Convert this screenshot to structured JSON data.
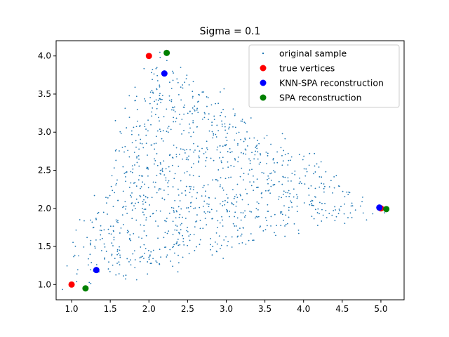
{
  "chart_data": {
    "type": "scatter",
    "title": "Sigma = 0.1",
    "xlabel": "",
    "ylabel": "",
    "xlim": [
      0.8,
      5.3
    ],
    "ylim": [
      0.8,
      4.2
    ],
    "xticks": [
      1.0,
      1.5,
      2.0,
      2.5,
      3.0,
      3.5,
      4.0,
      4.5,
      5.0
    ],
    "yticks": [
      1.0,
      1.5,
      2.0,
      2.5,
      3.0,
      3.5,
      4.0
    ],
    "xtick_labels": [
      "1.0",
      "1.5",
      "2.0",
      "2.5",
      "3.0",
      "3.5",
      "4.0",
      "4.5",
      "5.0"
    ],
    "ytick_labels": [
      "1.0",
      "1.5",
      "2.0",
      "2.5",
      "3.0",
      "3.5",
      "4.0"
    ],
    "grid": false,
    "legend_position": "top-right",
    "sample_point_count": 1100,
    "series": [
      {
        "name": "original sample",
        "color": "#1f77b4",
        "marker": "small-dot",
        "generation": "noisy convex combinations of the three true vertices",
        "noise_sigma": 0.1,
        "points": []
      },
      {
        "name": "true vertices",
        "color": "#ff0000",
        "marker": "circle",
        "points": [
          {
            "x": 1.0,
            "y": 1.0
          },
          {
            "x": 2.0,
            "y": 4.0
          },
          {
            "x": 5.0,
            "y": 2.0
          }
        ]
      },
      {
        "name": "KNN-SPA reconstruction",
        "color": "#0000ff",
        "marker": "circle",
        "points": [
          {
            "x": 1.32,
            "y": 1.19
          },
          {
            "x": 2.2,
            "y": 3.77
          },
          {
            "x": 4.98,
            "y": 2.01
          }
        ]
      },
      {
        "name": "SPA reconstruction",
        "color": "#008000",
        "marker": "circle",
        "points": [
          {
            "x": 1.18,
            "y": 0.95
          },
          {
            "x": 2.23,
            "y": 4.04
          },
          {
            "x": 5.07,
            "y": 1.99
          }
        ]
      }
    ]
  }
}
